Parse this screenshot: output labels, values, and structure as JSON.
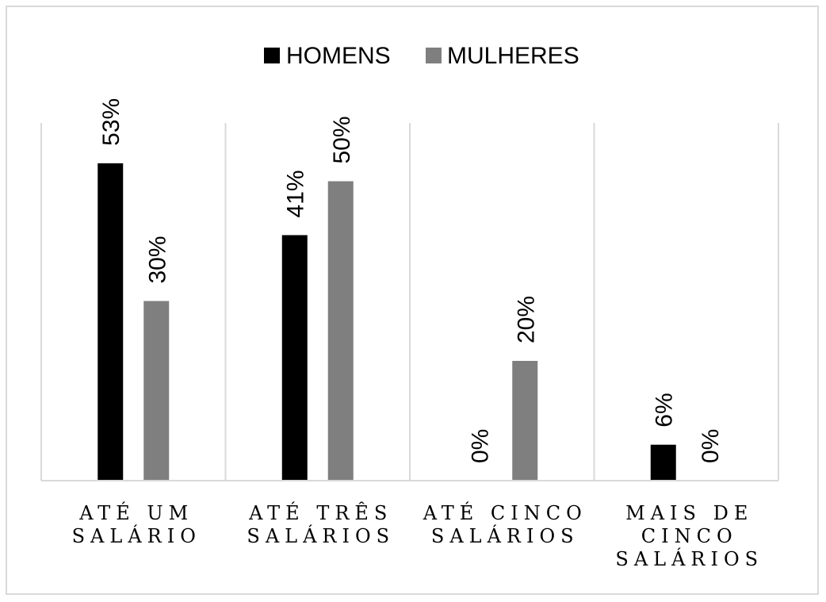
{
  "chart_data": {
    "type": "bar",
    "title": "",
    "xlabel": "",
    "ylabel": "",
    "ylim": [
      0,
      0.6
    ],
    "grid": "vertical category separators",
    "legend_position": "top",
    "categories": [
      [
        "ATÉ UM",
        "SALÁRIO"
      ],
      [
        "ATÉ TRÊS",
        "SALÁRIOS"
      ],
      [
        "ATÉ CINCO",
        "SALÁRIOS"
      ],
      [
        "MAIS DE",
        "CINCO",
        "SALÁRIOS"
      ]
    ],
    "series": [
      {
        "name": "HOMENS",
        "color": "#000000",
        "values": [
          0.53,
          0.41,
          0.0,
          0.06
        ],
        "labels": [
          "53%",
          "41%",
          "0%",
          "6%"
        ]
      },
      {
        "name": "MULHERES",
        "color": "#7f7f7f",
        "values": [
          0.3,
          0.5,
          0.2,
          0.0
        ],
        "labels": [
          "30%",
          "50%",
          "20%",
          "0%"
        ]
      }
    ]
  }
}
